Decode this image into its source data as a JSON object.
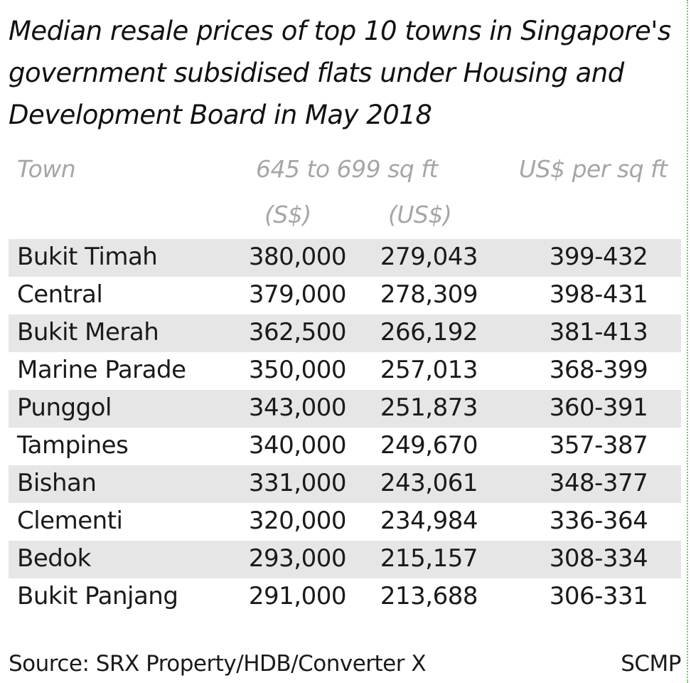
{
  "chart_data": {
    "type": "table",
    "title": "Median resale prices of top 10 towns in Singapore's government subsidised flats under Housing and Development Board in May 2018",
    "columns": {
      "town": "Town",
      "size_group": "645 to 699 sq ft",
      "sgd": "(S$)",
      "usd": "(US$)",
      "per_sqft": "US$ per sq ft"
    },
    "rows": [
      {
        "town": "Bukit Timah",
        "sgd": "380,000",
        "usd": "279,043",
        "per_sqft": "399-432"
      },
      {
        "town": "Central",
        "sgd": "379,000",
        "usd": "278,309",
        "per_sqft": "398-431"
      },
      {
        "town": "Bukit Merah",
        "sgd": "362,500",
        "usd": "266,192",
        "per_sqft": "381-413"
      },
      {
        "town": "Marine Parade",
        "sgd": "350,000",
        "usd": "257,013",
        "per_sqft": "368-399"
      },
      {
        "town": "Punggol",
        "sgd": "343,000",
        "usd": "251,873",
        "per_sqft": "360-391"
      },
      {
        "town": "Tampines",
        "sgd": "340,000",
        "usd": "249,670",
        "per_sqft": "357-387"
      },
      {
        "town": "Bishan",
        "sgd": "331,000",
        "usd": "243,061",
        "per_sqft": "348-377"
      },
      {
        "town": "Clementi",
        "sgd": "320,000",
        "usd": "234,984",
        "per_sqft": "336-364"
      },
      {
        "town": "Bedok",
        "sgd": "293,000",
        "usd": "215,157",
        "per_sqft": "308-334"
      },
      {
        "town": "Bukit Panjang",
        "sgd": "291,000",
        "usd": "213,688",
        "per_sqft": "306-331"
      }
    ],
    "source": "Source: SRX Property/HDB/Converter X",
    "credit": "SCMP"
  },
  "colors": {
    "row_shade": "#e6e6e6",
    "header_text": "#a6a6a6",
    "body_text": "#1a1a1a"
  }
}
